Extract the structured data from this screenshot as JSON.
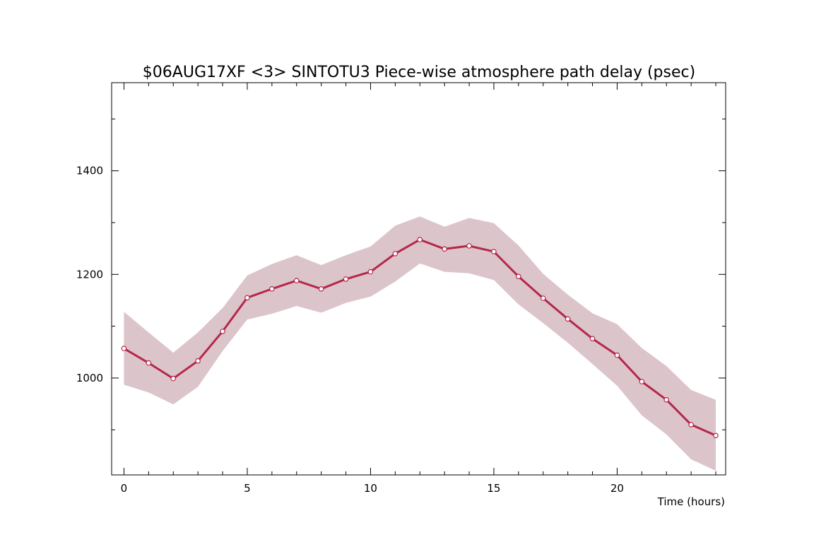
{
  "chart_data": {
    "type": "line",
    "title": "$06AUG17XF <3>  SINTOTU3  Piece-wise atmosphere path delay (psec)",
    "xlabel": "Time (hours)",
    "ylabel": "",
    "xlim": [
      -0.5,
      24.4
    ],
    "ylim": [
      813,
      1570
    ],
    "x_ticks": [
      0,
      5,
      10,
      15,
      20
    ],
    "y_ticks": [
      1000,
      1200,
      1400
    ],
    "grid": false,
    "colors": {
      "line": "#b5274a",
      "band": "#dcc5ca",
      "marker_fill": "#ffffff"
    },
    "series": [
      {
        "x": [
          0,
          1,
          2,
          3,
          4,
          5,
          6,
          7,
          8,
          9,
          10,
          11,
          12,
          13,
          14,
          15,
          16,
          17,
          18,
          19,
          20,
          21,
          22,
          23,
          24
        ],
        "values": [
          1057,
          1029,
          999,
          1033,
          1090,
          1155,
          1172,
          1188,
          1172,
          1191,
          1205,
          1240,
          1267,
          1249,
          1255,
          1244,
          1196,
          1154,
          1114,
          1076,
          1044,
          993,
          958,
          910,
          889
        ],
        "upper": [
          1128,
          1088,
          1049,
          1088,
          1135,
          1198,
          1220,
          1237,
          1218,
          1237,
          1254,
          1294,
          1312,
          1292,
          1309,
          1299,
          1256,
          1201,
          1161,
          1125,
          1104,
          1058,
          1023,
          977,
          958
        ],
        "lower": [
          987,
          972,
          949,
          983,
          1052,
          1113,
          1124,
          1139,
          1126,
          1145,
          1157,
          1186,
          1221,
          1205,
          1202,
          1189,
          1142,
          1106,
          1068,
          1027,
          985,
          928,
          891,
          843,
          821
        ]
      }
    ]
  }
}
